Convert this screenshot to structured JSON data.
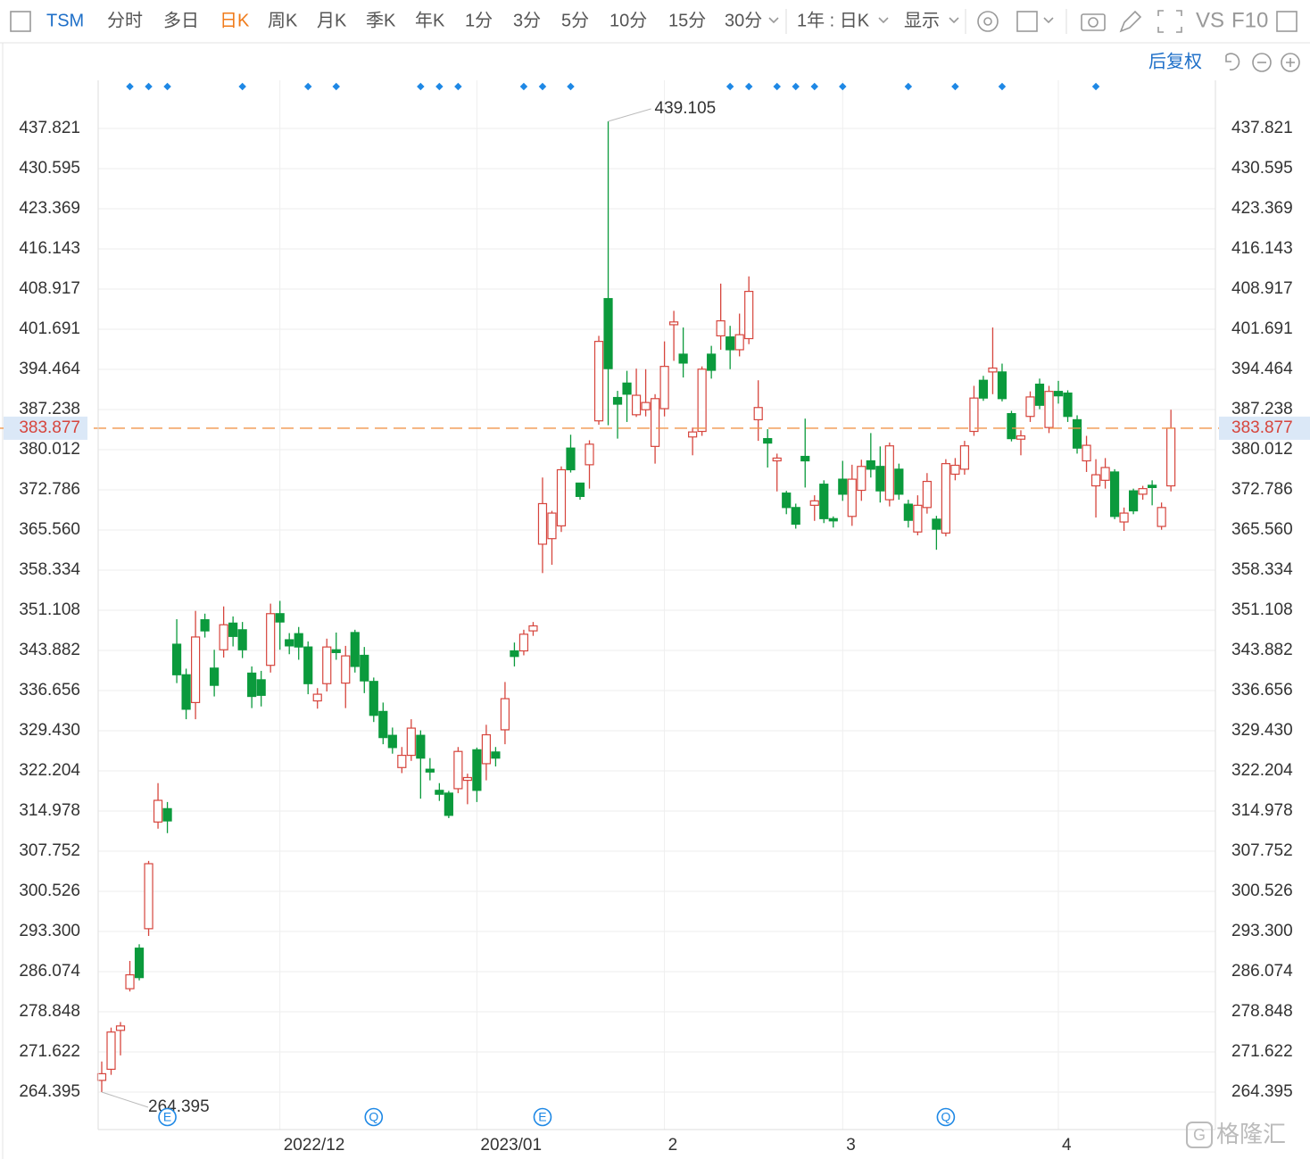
{
  "toolbar": {
    "symbol": "TSM",
    "periods": [
      "分时",
      "多日",
      "日K",
      "周K",
      "月K",
      "季K",
      "年K",
      "1分",
      "3分",
      "5分",
      "10分",
      "15分",
      "30分"
    ],
    "active_period": 2,
    "range": "1年 : 日K",
    "display": "显示",
    "vs": "VS",
    "f10": "F10"
  },
  "adjust": "后复权",
  "watermark": "格隆汇",
  "chart_data": {
    "type": "candlestick",
    "categories": [
      null,
      null,
      null,
      null,
      null,
      null,
      null,
      null,
      null,
      null,
      null,
      null,
      null,
      null,
      null,
      null,
      null,
      null,
      null,
      "2022/12",
      null,
      null,
      null,
      null,
      null,
      null,
      null,
      null,
      null,
      null,
      null,
      null,
      null,
      null,
      null,
      null,
      null,
      null,
      null,
      null,
      "2023/01",
      null,
      null,
      null,
      null,
      null,
      null,
      null,
      null,
      null,
      null,
      null,
      null,
      null,
      null,
      null,
      null,
      null,
      null,
      null,
      "2",
      null,
      null,
      null,
      null,
      null,
      null,
      null,
      null,
      null,
      null,
      null,
      null,
      null,
      null,
      null,
      null,
      null,
      null,
      "3",
      null,
      null,
      null,
      null,
      null,
      null,
      null,
      null,
      null,
      null,
      null,
      null,
      null,
      null,
      null,
      null,
      null,
      null,
      null,
      null,
      null,
      null,
      "4",
      null,
      null,
      null,
      null,
      null,
      null,
      null,
      null,
      null,
      null,
      null,
      null
    ],
    "open": [
      266.5,
      268.5,
      275.5,
      283.0,
      290.3,
      293.8,
      313.0,
      315.4,
      345.0,
      339.5,
      334.5,
      349.4,
      340.7,
      344.0,
      348.8,
      347.6,
      339.8,
      338.6,
      341.2,
      350.5,
      345.8,
      346.9,
      344.5,
      334.8,
      337.9,
      344.0,
      338.0,
      347.1,
      343.0,
      338.3,
      332.9,
      328.6,
      322.8,
      325.0,
      328.6,
      322.5,
      318.7,
      318.2,
      319.0,
      320.5,
      326.0,
      323.5,
      325.6,
      329.6,
      343.8,
      343.8,
      347.4,
      363.0,
      364.0,
      366.3,
      380.3,
      374.0,
      377.3,
      385.2,
      407.2,
      389.4,
      392.0,
      386.3,
      387.2,
      380.6,
      387.4,
      402.5,
      397.2,
      382.3,
      383.3,
      397.2,
      400.5,
      400.3,
      398.0,
      400.0,
      385.4,
      382.0,
      378.0,
      372.2,
      369.6,
      378.8,
      370.0,
      373.8,
      367.6,
      374.7,
      368.0,
      372.7,
      378.0,
      377.0,
      371.0,
      376.5,
      370.2,
      365.2,
      369.6,
      367.5,
      365.0,
      375.6,
      376.5,
      383.3,
      392.5,
      394.0,
      394.0,
      386.5,
      381.9,
      386.0,
      391.8,
      384.0,
      390.5,
      390.2,
      385.4,
      378.0,
      373.5,
      374.5,
      376.0,
      367.0,
      372.6,
      372.0,
      373.6,
      366.2,
      373.5
    ],
    "close": [
      267.7,
      275.2,
      276.3,
      285.5,
      285.0,
      305.5,
      316.9,
      313.2,
      339.5,
      333.3,
      346.3,
      347.4,
      337.6,
      348.5,
      346.4,
      344.0,
      335.6,
      335.8,
      350.5,
      349.0,
      344.7,
      344.5,
      337.9,
      336.0,
      344.5,
      343.5,
      342.9,
      341.0,
      338.4,
      332.2,
      328.2,
      326.4,
      325.0,
      329.9,
      324.5,
      322.0,
      318.0,
      314.2,
      325.7,
      321.0,
      318.7,
      328.7,
      324.5,
      335.2,
      342.8,
      346.8,
      348.3,
      370.3,
      368.6,
      376.4,
      376.4,
      371.6,
      381.0,
      399.5,
      394.6,
      388.2,
      390.0,
      389.8,
      388.5,
      389.2,
      395.0,
      403.0,
      395.6,
      383.2,
      394.5,
      394.3,
      403.2,
      398.0,
      400.7,
      408.5,
      387.6,
      381.2,
      378.5,
      369.6,
      366.6,
      378.0,
      370.8,
      367.6,
      367.2,
      372.0,
      374.7,
      377.0,
      376.5,
      372.6,
      380.7,
      372.0,
      367.3,
      370.0,
      374.3,
      365.7,
      377.5,
      377.2,
      380.7,
      389.3,
      389.3,
      394.7,
      389.2,
      382.0,
      382.5,
      389.5,
      388.0,
      390.5,
      389.7,
      386.0,
      380.3,
      380.8,
      375.5,
      376.8,
      368.0,
      368.6,
      369.0,
      373.0,
      373.2,
      369.6,
      383.877
    ],
    "high": [
      269.9,
      276.0,
      277.0,
      288.0,
      291.0,
      306.0,
      320.0,
      316.6,
      349.5,
      340.6,
      351.0,
      350.5,
      344.0,
      351.8,
      350.0,
      349.0,
      341.0,
      340.2,
      352.3,
      352.8,
      347.0,
      348.1,
      345.5,
      337.1,
      346.0,
      347.1,
      344.7,
      347.6,
      344.5,
      339.0,
      334.5,
      330.0,
      326.5,
      331.5,
      329.5,
      324.5,
      320.0,
      318.6,
      326.5,
      321.7,
      326.4,
      330.5,
      326.5,
      338.2,
      345.3,
      347.6,
      349.0,
      375.0,
      369.0,
      377.0,
      382.7,
      374.0,
      381.7,
      400.5,
      439.105,
      390.6,
      394.2,
      394.6,
      394.5,
      390.0,
      399.5,
      405.0,
      402.0,
      384.0,
      395.0,
      398.7,
      409.9,
      402.3,
      404.5,
      411.2,
      392.5,
      383.7,
      379.3,
      372.6,
      370.3,
      385.6,
      371.8,
      374.5,
      368.0,
      378.0,
      377.3,
      378.2,
      383.0,
      380.6,
      381.3,
      377.5,
      371.0,
      371.8,
      375.8,
      368.1,
      378.3,
      378.5,
      381.6,
      391.5,
      393.3,
      402.0,
      395.5,
      387.0,
      383.5,
      390.5,
      392.8,
      391.5,
      392.4,
      390.7,
      386.2,
      382.5,
      378.3,
      378.5,
      376.5,
      369.6,
      373.0,
      373.5,
      374.5,
      370.5,
      387.2
    ],
    "low": [
      264.395,
      267.5,
      271.0,
      282.5,
      284.5,
      292.5,
      311.8,
      311.0,
      338.0,
      331.5,
      331.5,
      346.2,
      335.6,
      342.6,
      344.6,
      342.5,
      333.5,
      333.8,
      339.9,
      344.0,
      343.2,
      342.2,
      336.0,
      333.4,
      336.5,
      342.2,
      333.5,
      339.9,
      336.2,
      331.0,
      327.0,
      325.3,
      321.8,
      324.0,
      317.2,
      320.5,
      316.8,
      313.7,
      318.2,
      316.2,
      316.6,
      320.5,
      323.0,
      327.0,
      341.0,
      343.0,
      346.5,
      357.8,
      359.3,
      365.2,
      375.9,
      371.0,
      373.0,
      384.5,
      384.4,
      382.0,
      385.0,
      385.9,
      386.0,
      377.5,
      386.0,
      396.0,
      393.0,
      379.0,
      382.5,
      392.8,
      398.0,
      394.5,
      396.8,
      399.0,
      381.6,
      376.8,
      372.5,
      368.4,
      365.8,
      373.2,
      367.2,
      366.8,
      366.0,
      370.8,
      366.3,
      370.8,
      375.0,
      370.5,
      369.8,
      371.0,
      366.0,
      364.6,
      368.5,
      362.0,
      364.4,
      374.5,
      375.5,
      382.5,
      388.8,
      390.0,
      388.7,
      381.5,
      379.0,
      385.0,
      387.3,
      383.0,
      388.3,
      385.0,
      379.3,
      376.0,
      367.8,
      373.0,
      367.5,
      365.4,
      368.4,
      371.0,
      370.0,
      365.6,
      372.5
    ],
    "up_color": "#d6453d",
    "down_color": "#0b9a3c",
    "price_line_color": "#f0954a",
    "ylim": [
      257.65,
      446.49
    ],
    "yticks": [
      264.395,
      271.622,
      278.848,
      286.074,
      {
        "value": 293.3,
        "label": "293.300"
      },
      300.526,
      307.752,
      314.978,
      322.204,
      {
        "value": 329.43,
        "label": "329.430"
      },
      336.656,
      343.882,
      351.108,
      358.334,
      {
        "value": 365.56,
        "label": "365.560"
      },
      372.786,
      380.012,
      387.238,
      394.464,
      401.691,
      408.917,
      416.143,
      423.369,
      430.595,
      437.821
    ],
    "grid": true,
    "events": [
      {
        "index": 7,
        "label": "E"
      },
      {
        "index": 29,
        "label": "Q"
      },
      {
        "index": 47,
        "label": "E"
      },
      {
        "index": 90,
        "label": "Q"
      }
    ],
    "dot_indices": [
      3,
      5,
      7,
      15,
      22,
      25,
      34,
      36,
      38,
      45,
      47,
      50,
      67,
      69,
      72,
      74,
      76,
      79,
      86,
      91,
      96,
      106
    ]
  }
}
